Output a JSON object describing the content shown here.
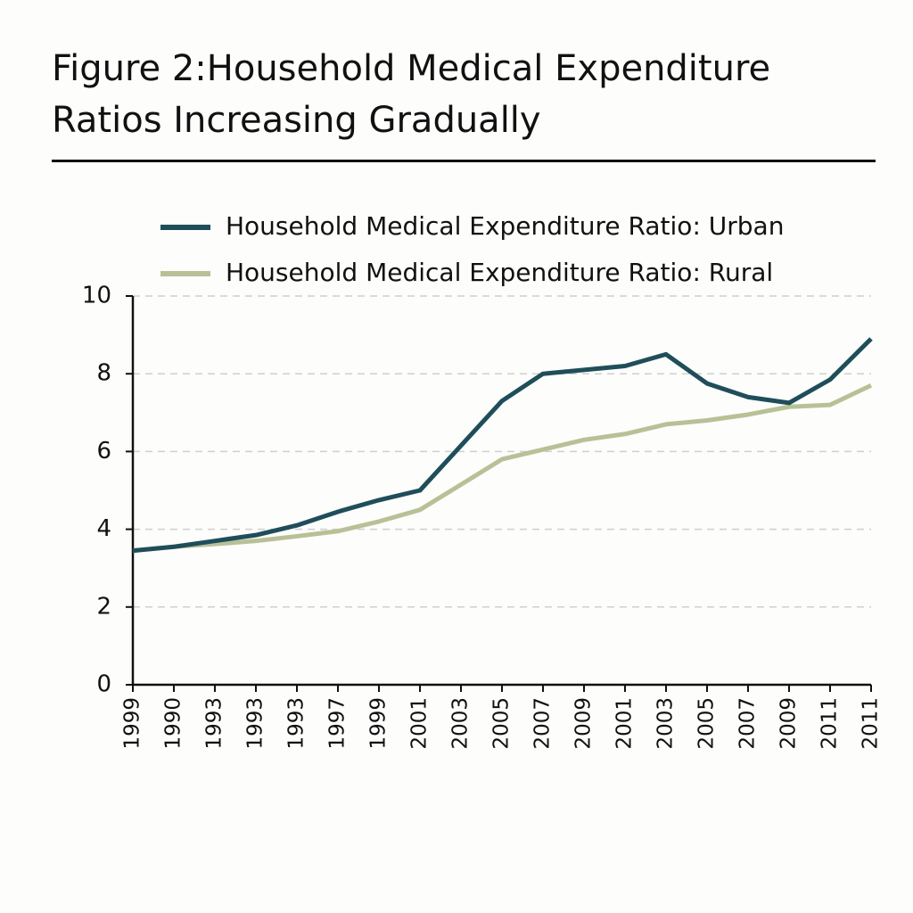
{
  "chart_data": {
    "type": "line",
    "title": "Figure 2:Household Medical Expenditure Ratios Increasing Gradually",
    "categories": [
      "1999",
      "1990",
      "1993",
      "1993",
      "1993",
      "1997",
      "1999",
      "2001",
      "2003",
      "2005",
      "2007",
      "2009",
      "2001",
      "2003",
      "2005",
      "2007",
      "2009",
      "2011",
      "2011"
    ],
    "series": [
      {
        "name": "Household Medical Expenditure Ratio: Urban",
        "color": "#1f4e5a",
        "values": [
          3.45,
          3.55,
          3.7,
          3.85,
          4.1,
          4.45,
          4.75,
          5.0,
          6.15,
          7.3,
          8.0,
          8.1,
          8.2,
          8.5,
          7.75,
          7.4,
          7.25,
          7.85,
          8.9
        ]
      },
      {
        "name": "Household Medical Expenditure Ratio: Rural",
        "color": "#b8c196",
        "values": [
          3.45,
          3.55,
          3.62,
          3.7,
          3.82,
          3.95,
          4.2,
          4.5,
          5.15,
          5.8,
          6.05,
          6.3,
          6.45,
          6.7,
          6.8,
          6.95,
          7.15,
          7.2,
          7.7
        ]
      }
    ],
    "ylim": [
      0,
      10
    ],
    "yticks": [
      0,
      2,
      4,
      6,
      8,
      10
    ],
    "grid": true,
    "legend": "top"
  }
}
